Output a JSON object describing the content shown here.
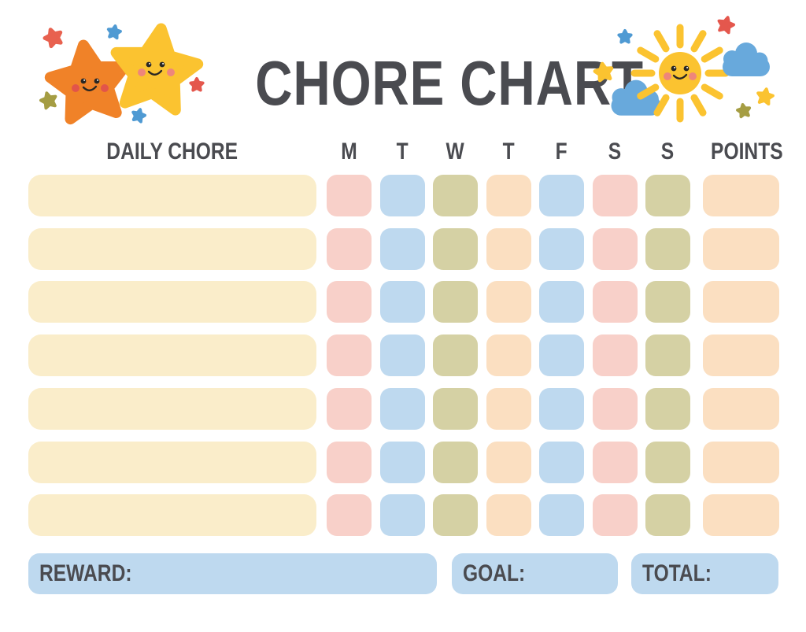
{
  "page": {
    "title": "CHORE CHART",
    "background": "#ffffff"
  },
  "colors": {
    "text": "#4a4b50",
    "cream": "#faedca",
    "pink": "#f8d0c9",
    "blue": "#bed9ef",
    "olive": "#d5d1a4",
    "peach": "#fbdfc1",
    "footer_box": "#bed9ef",
    "star_orange": "#f08228",
    "star_yellow": "#fbc330",
    "star_red": "#e4574d",
    "star_red_orange": "#e8614f",
    "star_blue": "#4f9ad3",
    "star_olive": "#a59d43",
    "cloud_blue": "#68a9dc",
    "cheek_red": "#e2544a",
    "cheek_pink": "#ee867b",
    "face_dark": "#2a2724"
  },
  "table": {
    "chore_column_header": "DAILY CHORE",
    "day_headers": [
      "M",
      "T",
      "W",
      "T",
      "F",
      "S",
      "S"
    ],
    "points_header": "POINTS",
    "row_count": 7,
    "day_cell_colors": [
      "pink",
      "blue",
      "olive",
      "peach",
      "blue",
      "pink",
      "olive"
    ],
    "points_cell_color": "peach",
    "chore_cell_color": "cream"
  },
  "footer": {
    "reward_label": "REWARD:",
    "goal_label": "GOAL:",
    "total_label": "TOTAL:"
  },
  "decorations": {
    "left_group": [
      "small-red-star-icon",
      "small-blue-star-icon",
      "orange-star-icon",
      "yellow-star-icon",
      "small-olive-star-icon",
      "small-red-star-icon",
      "small-blue-star-icon"
    ],
    "right_group": [
      "small-blue-star-icon",
      "small-red-star-icon",
      "small-yellow-star-icon",
      "cloud-icon",
      "sun-icon",
      "cloud-icon",
      "small-yellow-star-icon",
      "small-olive-star-icon"
    ]
  }
}
